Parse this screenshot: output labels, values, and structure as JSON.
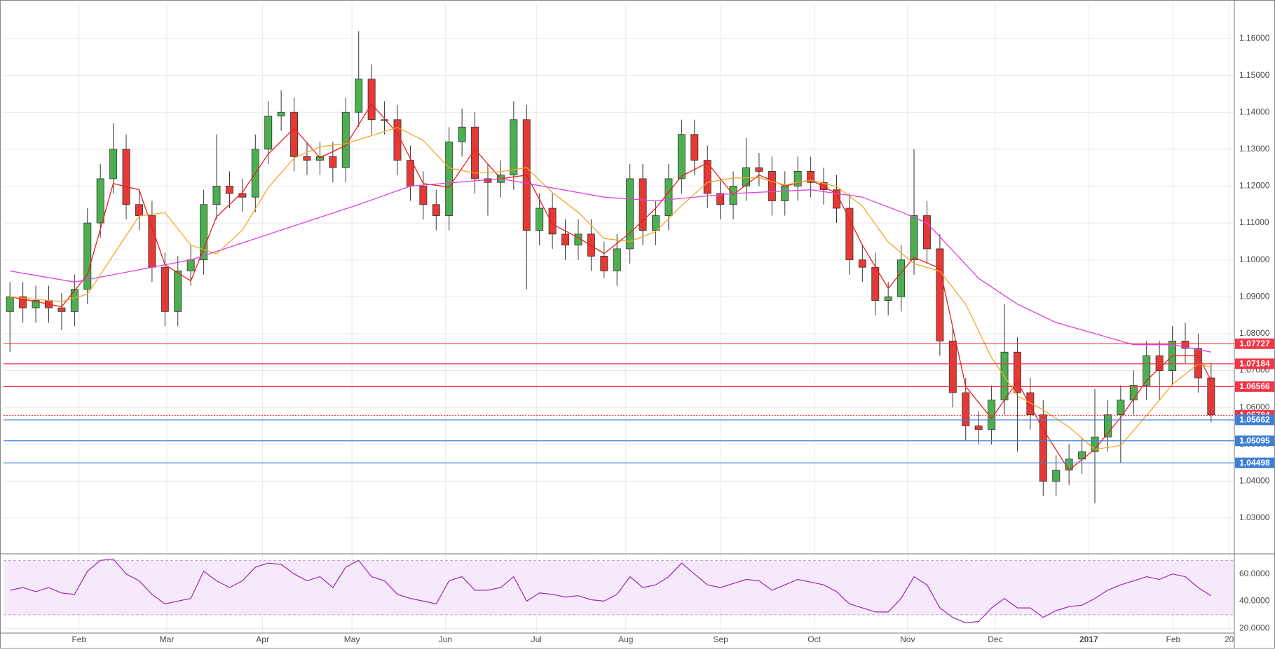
{
  "chart_data": [
    {
      "type": "candlestick",
      "open": [
        1.086,
        1.09,
        1.087,
        1.089,
        1.087,
        1.086,
        1.092,
        1.11,
        1.122,
        1.13,
        1.115,
        1.112,
        1.098,
        1.086,
        1.097,
        1.1,
        1.115,
        1.12,
        1.118,
        1.117,
        1.13,
        1.139,
        1.14,
        1.128,
        1.127,
        1.128,
        1.125,
        1.14,
        1.149,
        1.138,
        1.138,
        1.127,
        1.12,
        1.115,
        1.112,
        1.132,
        1.136,
        1.122,
        1.121,
        1.123,
        1.138,
        1.108,
        1.114,
        1.107,
        1.104,
        1.107,
        1.101,
        1.097,
        1.103,
        1.122,
        1.108,
        1.112,
        1.122,
        1.134,
        1.127,
        1.118,
        1.115,
        1.12,
        1.125,
        1.124,
        1.116,
        1.12,
        1.124,
        1.121,
        1.119,
        1.114,
        1.1,
        1.098,
        1.089,
        1.09,
        1.1,
        1.112,
        1.103,
        1.078,
        1.064,
        1.055,
        1.054,
        1.062,
        1.075,
        1.064,
        1.058,
        1.04,
        1.043,
        1.046,
        1.048,
        1.052,
        1.058,
        1.062,
        1.066,
        1.074,
        1.07,
        1.078,
        1.076,
        1.068
      ],
      "high": [
        1.094,
        1.094,
        1.093,
        1.093,
        1.091,
        1.096,
        1.114,
        1.126,
        1.137,
        1.134,
        1.119,
        1.116,
        1.102,
        1.101,
        1.104,
        1.119,
        1.134,
        1.124,
        1.122,
        1.134,
        1.143,
        1.146,
        1.144,
        1.132,
        1.132,
        1.132,
        1.144,
        1.162,
        1.153,
        1.143,
        1.142,
        1.131,
        1.124,
        1.119,
        1.136,
        1.141,
        1.14,
        1.126,
        1.127,
        1.143,
        1.142,
        1.118,
        1.118,
        1.111,
        1.111,
        1.111,
        1.105,
        1.107,
        1.126,
        1.126,
        1.116,
        1.126,
        1.138,
        1.138,
        1.131,
        1.122,
        1.124,
        1.133,
        1.129,
        1.128,
        1.124,
        1.128,
        1.128,
        1.125,
        1.123,
        1.118,
        1.104,
        1.102,
        1.094,
        1.104,
        1.13,
        1.116,
        1.107,
        1.082,
        1.068,
        1.059,
        1.066,
        1.088,
        1.079,
        1.068,
        1.062,
        1.047,
        1.05,
        1.052,
        1.065,
        1.062,
        1.066,
        1.07,
        1.078,
        1.078,
        1.082,
        1.083,
        1.08,
        1.072
      ],
      "low": [
        1.075,
        1.083,
        1.083,
        1.083,
        1.081,
        1.082,
        1.088,
        1.106,
        1.118,
        1.111,
        1.108,
        1.094,
        1.082,
        1.082,
        1.093,
        1.096,
        1.111,
        1.114,
        1.113,
        1.113,
        1.126,
        1.135,
        1.124,
        1.123,
        1.123,
        1.121,
        1.121,
        1.136,
        1.134,
        1.134,
        1.123,
        1.116,
        1.111,
        1.108,
        1.108,
        1.128,
        1.118,
        1.112,
        1.117,
        1.119,
        1.092,
        1.104,
        1.103,
        1.1,
        1.1,
        1.097,
        1.095,
        1.093,
        1.099,
        1.104,
        1.104,
        1.108,
        1.118,
        1.123,
        1.114,
        1.111,
        1.111,
        1.116,
        1.12,
        1.112,
        1.112,
        1.116,
        1.117,
        1.115,
        1.11,
        1.096,
        1.094,
        1.085,
        1.085,
        1.086,
        1.096,
        1.099,
        1.074,
        1.06,
        1.051,
        1.05,
        1.05,
        1.058,
        1.048,
        1.054,
        1.036,
        1.036,
        1.039,
        1.042,
        1.034,
        1.048,
        1.045,
        1.058,
        1.062,
        1.062,
        1.066,
        1.072,
        1.064,
        1.056
      ],
      "close": [
        1.09,
        1.087,
        1.089,
        1.087,
        1.086,
        1.092,
        1.11,
        1.122,
        1.13,
        1.115,
        1.112,
        1.098,
        1.086,
        1.097,
        1.1,
        1.115,
        1.12,
        1.118,
        1.117,
        1.13,
        1.139,
        1.14,
        1.128,
        1.127,
        1.128,
        1.125,
        1.14,
        1.149,
        1.138,
        1.138,
        1.127,
        1.12,
        1.115,
        1.112,
        1.132,
        1.136,
        1.122,
        1.121,
        1.123,
        1.138,
        1.108,
        1.114,
        1.107,
        1.104,
        1.107,
        1.101,
        1.097,
        1.103,
        1.122,
        1.108,
        1.112,
        1.122,
        1.134,
        1.127,
        1.118,
        1.115,
        1.12,
        1.125,
        1.124,
        1.116,
        1.12,
        1.124,
        1.121,
        1.119,
        1.114,
        1.1,
        1.098,
        1.089,
        1.09,
        1.1,
        1.112,
        1.103,
        1.078,
        1.064,
        1.055,
        1.054,
        1.062,
        1.075,
        1.064,
        1.058,
        1.04,
        1.043,
        1.046,
        1.048,
        1.052,
        1.058,
        1.062,
        1.066,
        1.074,
        1.07,
        1.078,
        1.076,
        1.068,
        1.058
      ],
      "up_color": "#4caf50",
      "down_color": "#e53935",
      "ylim": [
        1.0205,
        1.1695
      ],
      "yticks": [
        {
          "value": 1.03,
          "label": "1.03000"
        },
        {
          "value": 1.04,
          "label": "1.04000"
        },
        {
          "value": 1.05,
          "label": "1.05000"
        },
        {
          "value": 1.06,
          "label": "1.06000"
        },
        {
          "value": 1.07,
          "label": "1.07000"
        },
        {
          "value": 1.08,
          "label": "1.08000"
        },
        {
          "value": 1.09,
          "label": "1.09000"
        },
        {
          "value": 1.1,
          "label": "1.10000"
        },
        {
          "value": 1.11,
          "label": "1.11000"
        },
        {
          "value": 1.12,
          "label": "1.12000"
        },
        {
          "value": 1.13,
          "label": "1.13000"
        },
        {
          "value": 1.14,
          "label": "1.14000"
        },
        {
          "value": 1.15,
          "label": "1.15000"
        },
        {
          "value": 1.16,
          "label": "1.16000"
        }
      ],
      "grid": true,
      "levels": [
        {
          "value": 1.07727,
          "color": "#f23645",
          "style": "solid"
        },
        {
          "value": 1.07184,
          "color": "#f23645",
          "style": "solid"
        },
        {
          "value": 1.06566,
          "color": "#f23645",
          "style": "solid"
        },
        {
          "value": 1.05784,
          "color": "#f23645",
          "style": "dotted"
        },
        {
          "value": 1.05662,
          "color": "#3d7fd6",
          "style": "solid"
        },
        {
          "value": 1.05095,
          "color": "#3d7fd6",
          "style": "solid"
        },
        {
          "value": 1.04498,
          "color": "#3d7fd6",
          "style": "solid"
        }
      ],
      "overlays": [
        {
          "color": "#e81e1e",
          "x": [
            0.5,
            2.5,
            4.5,
            6.5,
            8.5,
            10.5,
            12.5,
            14.5,
            16.5,
            18.5,
            20.5,
            22.5,
            24.5,
            26.5,
            28.5,
            30.5,
            32.5,
            34.5,
            36.5,
            38.5,
            40.5,
            42.5,
            44.5,
            46.5,
            48.5,
            50.5,
            52.5,
            54.5,
            56.5,
            58.5,
            60.5,
            62.5,
            64.5,
            66.5,
            68.5,
            70.5,
            72.5,
            74.5,
            76.5,
            78.5,
            80.5,
            82.5,
            84.5,
            86.5,
            88.5,
            90.5,
            92.5,
            93.5
          ],
          "values": [
            1.09,
            1.0887,
            1.0873,
            1.096,
            1.1207,
            1.119,
            1.0987,
            1.0943,
            1.1117,
            1.1183,
            1.1287,
            1.1357,
            1.1277,
            1.131,
            1.1423,
            1.1343,
            1.1207,
            1.1197,
            1.13,
            1.122,
            1.123,
            1.1097,
            1.106,
            1.1017,
            1.1073,
            1.114,
            1.1227,
            1.1263,
            1.1177,
            1.123,
            1.12,
            1.1217,
            1.118,
            1.104,
            1.0923,
            1.1007,
            1.0977,
            1.0657,
            1.057,
            1.067,
            1.054,
            1.043,
            1.0487,
            1.0573,
            1.0673,
            1.074,
            1.074,
            1.0673
          ]
        },
        {
          "color": "#f5a623",
          "x": [
            0.5,
            2.5,
            4.5,
            6.5,
            8.5,
            10.5,
            12.5,
            14.5,
            16.5,
            18.5,
            20.5,
            22.5,
            24.5,
            26.5,
            28.5,
            30.5,
            32.5,
            34.5,
            36.5,
            38.5,
            40.5,
            42.5,
            44.5,
            46.5,
            48.5,
            50.5,
            52.5,
            54.5,
            56.5,
            58.5,
            60.5,
            62.5,
            64.5,
            66.5,
            68.5,
            70.5,
            72.5,
            74.5,
            76.5,
            78.5,
            80.5,
            82.5,
            84.5,
            86.5,
            88.5,
            90.5,
            92.5,
            93.5
          ],
          "values": [
            1.09,
            1.0893,
            1.0887,
            1.0907,
            1.1013,
            1.1119,
            1.1128,
            1.104,
            1.1016,
            1.1081,
            1.1196,
            1.1276,
            1.1307,
            1.1315,
            1.1337,
            1.1359,
            1.1324,
            1.1249,
            1.1235,
            1.1239,
            1.125,
            1.1182,
            1.1129,
            1.1058,
            1.105,
            1.1077,
            1.1147,
            1.121,
            1.1222,
            1.1223,
            1.1203,
            1.1216,
            1.1199,
            1.1146,
            1.1048,
            1.099,
            1.0969,
            1.088,
            1.0735,
            1.0632,
            1.0593,
            1.0547,
            1.0486,
            1.0497,
            1.0578,
            1.0662,
            1.0718,
            1.0709
          ]
        },
        {
          "color": "#e040e0",
          "x": [
            0.5,
            5.5,
            14.5,
            27.5,
            31.5,
            38.5,
            46.5,
            50.5,
            56.5,
            62.5,
            66.5,
            69.5,
            71.5,
            75.5,
            78.5,
            81.5,
            84.5,
            87.5,
            90.5,
            93.5
          ],
          "values": [
            1.097,
            1.094,
            1.1,
            1.115,
            1.12,
            1.122,
            1.117,
            1.116,
            1.118,
            1.119,
            1.117,
            1.113,
            1.11,
            1.095,
            1.088,
            1.083,
            1.08,
            1.077,
            1.077,
            1.075
          ]
        }
      ]
    },
    {
      "type": "line",
      "values": [
        48,
        50,
        47,
        50,
        46,
        45,
        62,
        70,
        71,
        60,
        55,
        45,
        38,
        40,
        42,
        62,
        55,
        50,
        55,
        65,
        68,
        67,
        60,
        55,
        58,
        50,
        65,
        70,
        58,
        55,
        45,
        42,
        40,
        38,
        55,
        58,
        48,
        48,
        50,
        58,
        40,
        46,
        45,
        43,
        44,
        41,
        40,
        45,
        58,
        50,
        52,
        58,
        68,
        60,
        52,
        50,
        53,
        56,
        55,
        48,
        52,
        56,
        54,
        52,
        47,
        38,
        35,
        32,
        32,
        42,
        58,
        52,
        35,
        28,
        24,
        25,
        35,
        42,
        35,
        35,
        28,
        33,
        36,
        37,
        42,
        48,
        52,
        55,
        58,
        56,
        60,
        58,
        50,
        44
      ],
      "color": "#9c27b0",
      "band": [
        30,
        70
      ],
      "xlim": [
        0,
        95.3
      ],
      "xticks": [
        {
          "value": 5.85,
          "label": "Feb"
        },
        {
          "value": 12.64,
          "label": "Mar"
        },
        {
          "value": 20.06,
          "label": "Apr"
        },
        {
          "value": 26.98,
          "label": "May"
        },
        {
          "value": 34.21,
          "label": "Jun"
        },
        {
          "value": 41.26,
          "label": "Jul"
        },
        {
          "value": 48.18,
          "label": "Aug"
        },
        {
          "value": 55.53,
          "label": "Sep"
        },
        {
          "value": 62.77,
          "label": "Oct"
        },
        {
          "value": 70.0,
          "label": "Nov"
        },
        {
          "value": 76.79,
          "label": "Dec"
        },
        {
          "value": 84.03,
          "label": "2017"
        },
        {
          "value": 90.57,
          "label": "Feb"
        },
        {
          "value": 94.9,
          "label": "20"
        }
      ],
      "ylim": [
        17,
        74.3
      ],
      "yticks": [
        {
          "value": 20,
          "label": "20.0000"
        },
        {
          "value": 40,
          "label": "40.0000"
        },
        {
          "value": 60,
          "label": "60.0000"
        }
      ],
      "grid": true
    }
  ]
}
